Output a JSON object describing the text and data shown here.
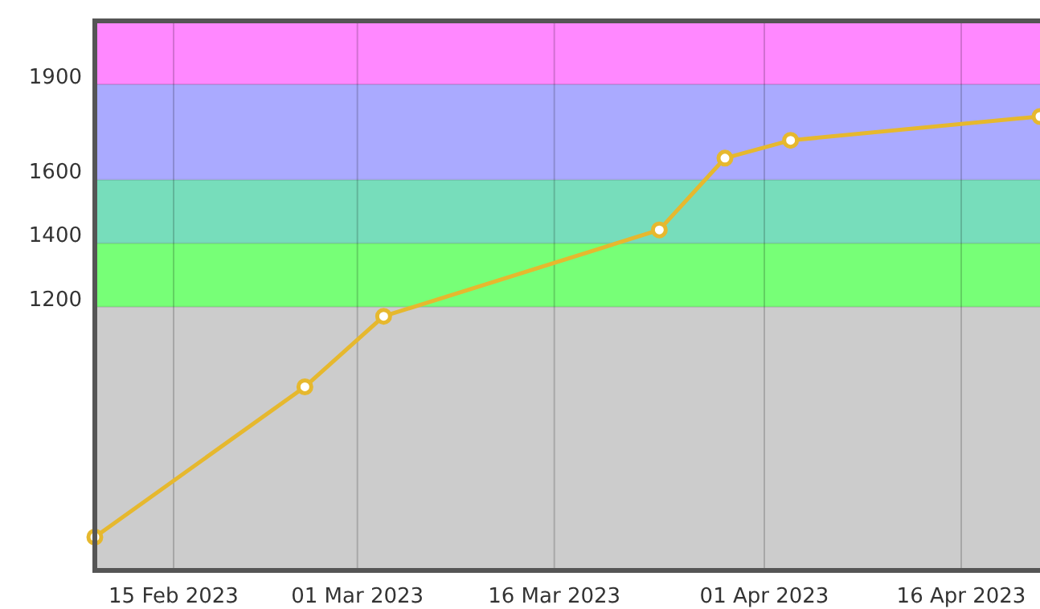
{
  "chart_data": {
    "type": "line",
    "x": [
      "2023-02-09",
      "2023-02-25",
      "2023-03-03",
      "2023-03-24",
      "2023-03-29",
      "2023-04-03",
      "2023-04-22"
    ],
    "series": [
      {
        "color": "#e6b82e",
        "values": [
          475,
          948,
          1170,
          1442,
          1668,
          1724,
          1799
        ]
      }
    ],
    "xlim": [
      "2023-02-09",
      "2023-04-22"
    ],
    "xticks": [
      {
        "value": "2023-02-15",
        "label": "15 Feb 2023"
      },
      {
        "value": "2023-03-01",
        "label": "01 Mar 2023"
      },
      {
        "value": "2023-03-16",
        "label": "16 Mar 2023"
      },
      {
        "value": "2023-04-01",
        "label": "01 Apr 2023"
      },
      {
        "value": "2023-04-16",
        "label": "16 Apr 2023"
      }
    ],
    "ylim": [
      370,
      2100
    ],
    "yticks": [
      1200,
      1400,
      1600,
      1900
    ],
    "bands": [
      {
        "axis": "y",
        "from": 370,
        "to": 1200,
        "color": "#cccccc"
      },
      {
        "axis": "y",
        "from": 1200,
        "to": 1400,
        "color": "#77ff77"
      },
      {
        "axis": "y",
        "from": 1400,
        "to": 1600,
        "color": "#77ddbb"
      },
      {
        "axis": "y",
        "from": 1600,
        "to": 1900,
        "color": "#aaaaff"
      },
      {
        "axis": "y",
        "from": 1900,
        "to": 2100,
        "color": "#ff88ff"
      }
    ],
    "grid": true,
    "marker": "circle",
    "line_style": "solid"
  }
}
